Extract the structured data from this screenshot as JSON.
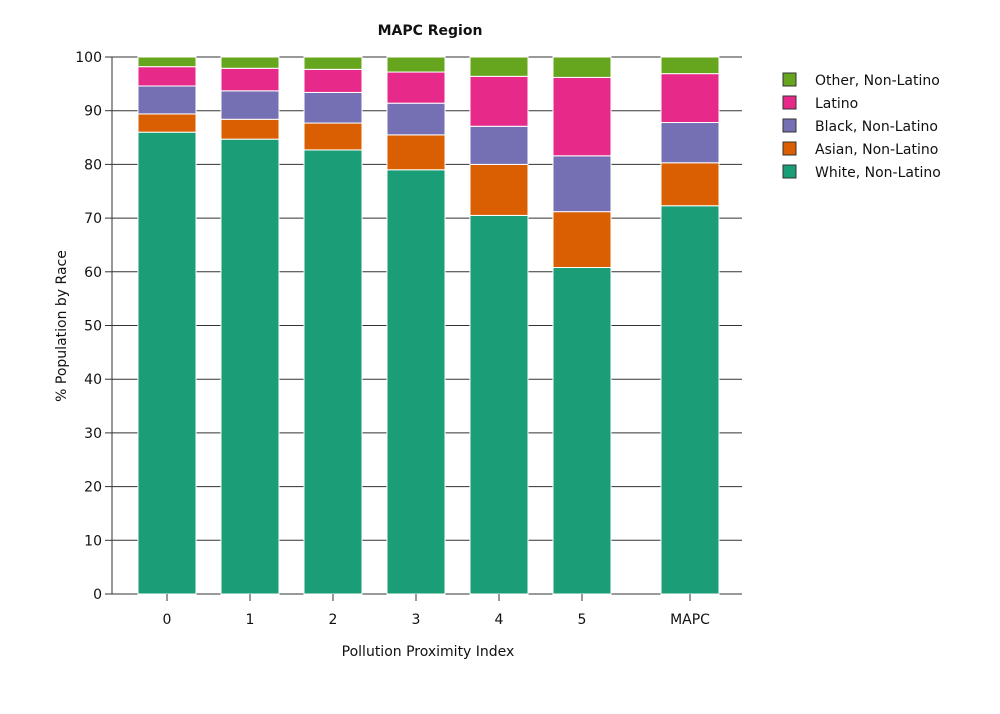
{
  "chart_data": {
    "type": "bar",
    "stacked": true,
    "title": "MAPC Region",
    "xlabel": "Pollution Proximity Index",
    "ylabel": "% Population by Race",
    "ylim": [
      0,
      100
    ],
    "yticks": [
      0,
      10,
      20,
      30,
      40,
      50,
      60,
      70,
      80,
      90,
      100
    ],
    "grid": "horizontal",
    "legend_position": "top-right",
    "categories": [
      "0",
      "1",
      "2",
      "3",
      "4",
      "5",
      "MAPC"
    ],
    "series": [
      {
        "name": "White, Non-Latino",
        "color": "#1b9e77",
        "values": [
          86,
          84.7,
          82.7,
          79,
          70.5,
          60.8,
          72.3
        ]
      },
      {
        "name": "Asian, Non-Latino",
        "color": "#d95f02",
        "values": [
          3.4,
          3.7,
          5,
          6.5,
          9.5,
          10.4,
          8
        ]
      },
      {
        "name": "Black, Non-Latino",
        "color": "#7570b3",
        "values": [
          5.2,
          5.3,
          5.7,
          5.9,
          7.1,
          10.4,
          7.5
        ]
      },
      {
        "name": "Latino",
        "color": "#e7298a",
        "values": [
          3.6,
          4.2,
          4.3,
          5.8,
          9.3,
          14.6,
          9.1
        ]
      },
      {
        "name": "Other, Non-Latino",
        "color": "#66a61e",
        "values": [
          1.8,
          2.1,
          2.3,
          2.8,
          3.6,
          3.8,
          3.1
        ]
      }
    ]
  }
}
